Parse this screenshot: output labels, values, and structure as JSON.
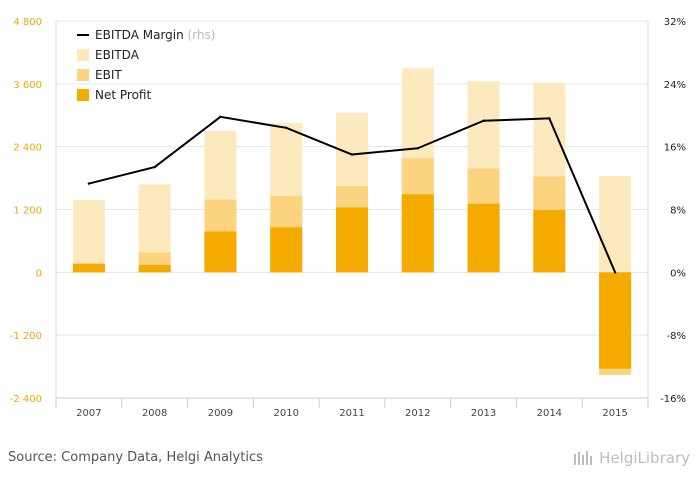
{
  "chart_data": {
    "type": "bar",
    "categories": [
      "2007",
      "2008",
      "2009",
      "2010",
      "2011",
      "2012",
      "2013",
      "2014",
      "2015"
    ],
    "series": [
      {
        "name": "EBITDA",
        "type": "bar",
        "values": [
          1380,
          1680,
          2700,
          2850,
          3050,
          3900,
          3650,
          3620,
          1840
        ]
      },
      {
        "name": "EBIT",
        "type": "bar",
        "values": [
          180,
          380,
          1390,
          1460,
          1650,
          2180,
          1980,
          1830,
          -1960
        ]
      },
      {
        "name": "Net Profit",
        "type": "bar",
        "values": [
          160,
          140,
          780,
          860,
          1240,
          1490,
          1310,
          1190,
          -1840
        ]
      },
      {
        "name": "EBITDA Margin",
        "axis": "right",
        "type": "line",
        "values": [
          11.3,
          13.4,
          19.8,
          18.4,
          15.0,
          15.8,
          19.3,
          19.6,
          0.0
        ]
      }
    ],
    "ylim": [
      -2400,
      4800
    ],
    "yticks": [
      "4 800",
      "3 600",
      "2 400",
      "1 200",
      "0",
      "-1 200",
      "-2 400"
    ],
    "y2lim": [
      -16,
      32
    ],
    "y2ticks": [
      "32%",
      "24%",
      "16%",
      "8%",
      "0%",
      "-8%",
      "-16%"
    ],
    "legend": {
      "position": "top-left",
      "rhs_suffix": "(rhs)"
    },
    "grid": true,
    "colors": {
      "EBITDA": "#fde9be",
      "EBIT": "#fcd37f",
      "Net Profit": "#f5aa00",
      "EBITDA Margin": "#000000",
      "left_ticks": "#f0a800"
    }
  },
  "footer": {
    "source": "Source: Company Data, Helgi Analytics",
    "brand": "HelgiLibrary"
  }
}
